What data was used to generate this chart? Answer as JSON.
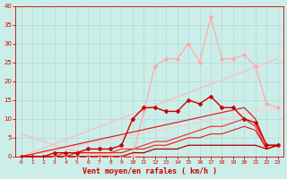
{
  "xlabel": "Vent moyen/en rafales ( km/h )",
  "bg_color": "#cceee8",
  "grid_color": "#aadddd",
  "xlim": [
    -0.5,
    23.5
  ],
  "ylim": [
    0,
    40
  ],
  "xticks": [
    0,
    1,
    2,
    3,
    4,
    5,
    6,
    7,
    8,
    9,
    10,
    11,
    12,
    13,
    14,
    15,
    16,
    17,
    18,
    19,
    20,
    21,
    22,
    23
  ],
  "yticks": [
    0,
    5,
    10,
    15,
    20,
    25,
    30,
    35,
    40
  ],
  "series": [
    {
      "x": [
        0,
        1,
        2,
        3,
        4,
        5,
        6,
        7,
        8,
        9,
        10,
        11
      ],
      "y": [
        6,
        5,
        4,
        3,
        2,
        1.5,
        1,
        0.5,
        0.2,
        0.1,
        0,
        0
      ],
      "color": "#ffbbbb",
      "linewidth": 0.9,
      "marker": null,
      "zorder": 2
    },
    {
      "x": [
        0,
        1,
        2,
        3,
        4,
        5,
        6,
        7,
        8,
        9,
        10,
        11,
        12,
        13,
        14,
        15,
        16,
        17,
        18,
        19,
        20,
        21,
        22,
        23
      ],
      "y": [
        0,
        0,
        0,
        0,
        0,
        0,
        0,
        0,
        0,
        0,
        0,
        12,
        24,
        26,
        26,
        30,
        25,
        37,
        26,
        26,
        27,
        24,
        14,
        13
      ],
      "color": "#ffaaaa",
      "linewidth": 0.9,
      "marker": "D",
      "markersize": 2.0,
      "zorder": 3
    },
    {
      "x": [
        0,
        23
      ],
      "y": [
        0,
        26
      ],
      "color": "#ffbbbb",
      "linewidth": 0.9,
      "marker": null,
      "zorder": 2
    },
    {
      "x": [
        0,
        23
      ],
      "y": [
        0,
        13
      ],
      "color": "#ffcccc",
      "linewidth": 0.9,
      "marker": null,
      "zorder": 2
    },
    {
      "x": [
        0,
        1,
        2,
        3,
        4,
        5,
        6,
        7,
        8,
        9,
        10,
        11,
        12,
        13,
        14,
        15,
        16,
        17,
        18,
        19,
        20,
        21,
        22,
        23
      ],
      "y": [
        0,
        0,
        0,
        1,
        1,
        1,
        2,
        2,
        2,
        3,
        10,
        13,
        13,
        12,
        12,
        15,
        14,
        16,
        13,
        13,
        10,
        9,
        3,
        3
      ],
      "color": "#cc0000",
      "linewidth": 1.0,
      "marker": "D",
      "markersize": 2.0,
      "zorder": 4
    },
    {
      "x": [
        0,
        20,
        21,
        22,
        23
      ],
      "y": [
        0,
        13,
        10,
        3,
        3
      ],
      "color": "#dd2222",
      "linewidth": 0.9,
      "marker": null,
      "zorder": 3
    },
    {
      "x": [
        0,
        1,
        2,
        3,
        4,
        5,
        6,
        7,
        8,
        9,
        10,
        11,
        12,
        13,
        14,
        15,
        16,
        17,
        18,
        19,
        20,
        21,
        22,
        23
      ],
      "y": [
        0,
        0,
        0,
        0,
        1,
        1,
        1,
        1,
        1,
        2,
        2,
        3,
        4,
        4,
        5,
        6,
        7,
        8,
        8,
        9,
        10,
        8,
        2,
        3
      ],
      "color": "#ff2222",
      "linewidth": 0.8,
      "marker": null,
      "zorder": 2
    },
    {
      "x": [
        0,
        1,
        2,
        3,
        4,
        5,
        6,
        7,
        8,
        9,
        10,
        11,
        12,
        13,
        14,
        15,
        16,
        17,
        18,
        19,
        20,
        21,
        22,
        23
      ],
      "y": [
        0,
        0,
        0,
        0,
        0,
        1,
        1,
        1,
        1,
        1,
        2,
        2,
        3,
        3,
        4,
        5,
        5,
        6,
        6,
        7,
        8,
        7,
        2,
        3
      ],
      "color": "#ee1111",
      "linewidth": 0.8,
      "marker": null,
      "zorder": 2
    },
    {
      "x": [
        0,
        1,
        2,
        3,
        4,
        5,
        6,
        7,
        8,
        9,
        10,
        11,
        12,
        13,
        14,
        15,
        16,
        17,
        18,
        19,
        20,
        21,
        22,
        23
      ],
      "y": [
        0,
        0,
        0,
        0,
        0,
        0,
        0,
        0,
        0,
        0,
        1,
        1,
        2,
        2,
        2,
        3,
        3,
        3,
        3,
        3,
        3,
        3,
        2,
        3
      ],
      "color": "#aa0000",
      "linewidth": 0.9,
      "marker": null,
      "zorder": 3
    }
  ]
}
